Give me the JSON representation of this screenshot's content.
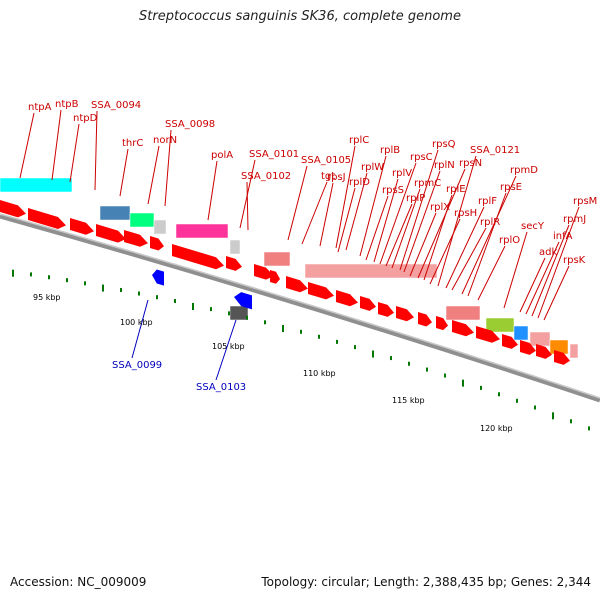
{
  "title": "Streptococcus sanguinis SK36, complete genome",
  "accession": "Accession: NC_009009",
  "summary": "Topology: circular; Length: 2,388,435 bp; Genes: 2,344",
  "colors": {
    "label_red": "#cc0000",
    "label_blue": "#0000bb",
    "cds": "#ff0000",
    "backbone": "#a0a0a0",
    "ticks": "#007700"
  },
  "gene_labels_top": [
    "ntpA",
    "ntpB",
    "ntpD",
    "SSA_0094",
    "thrC",
    "norN",
    "SSA_0098",
    "polA",
    "SSA_0101",
    "SSA_0102",
    "SSA_0105",
    "tgt",
    "rplC",
    "rpsJ",
    "rplW",
    "rplD",
    "rplB",
    "rpsS",
    "rplV",
    "rpsC",
    "rplP",
    "rpmC",
    "rpsQ",
    "rplN",
    "rplX",
    "rpsN",
    "rplE",
    "rpsH",
    "SSA_0121",
    "rplF",
    "rplR",
    "rpmD",
    "rpsE",
    "rplO",
    "secY",
    "adk",
    "infA",
    "rpmJ",
    "rpsM",
    "rpsK"
  ],
  "gene_labels_bottom": [
    "SSA_0099",
    "SSA_0103"
  ],
  "scale_labels": [
    "95 kbp",
    "100 kbp",
    "105 kbp",
    "110 kbp",
    "115 kbp",
    "120 kbp"
  ]
}
